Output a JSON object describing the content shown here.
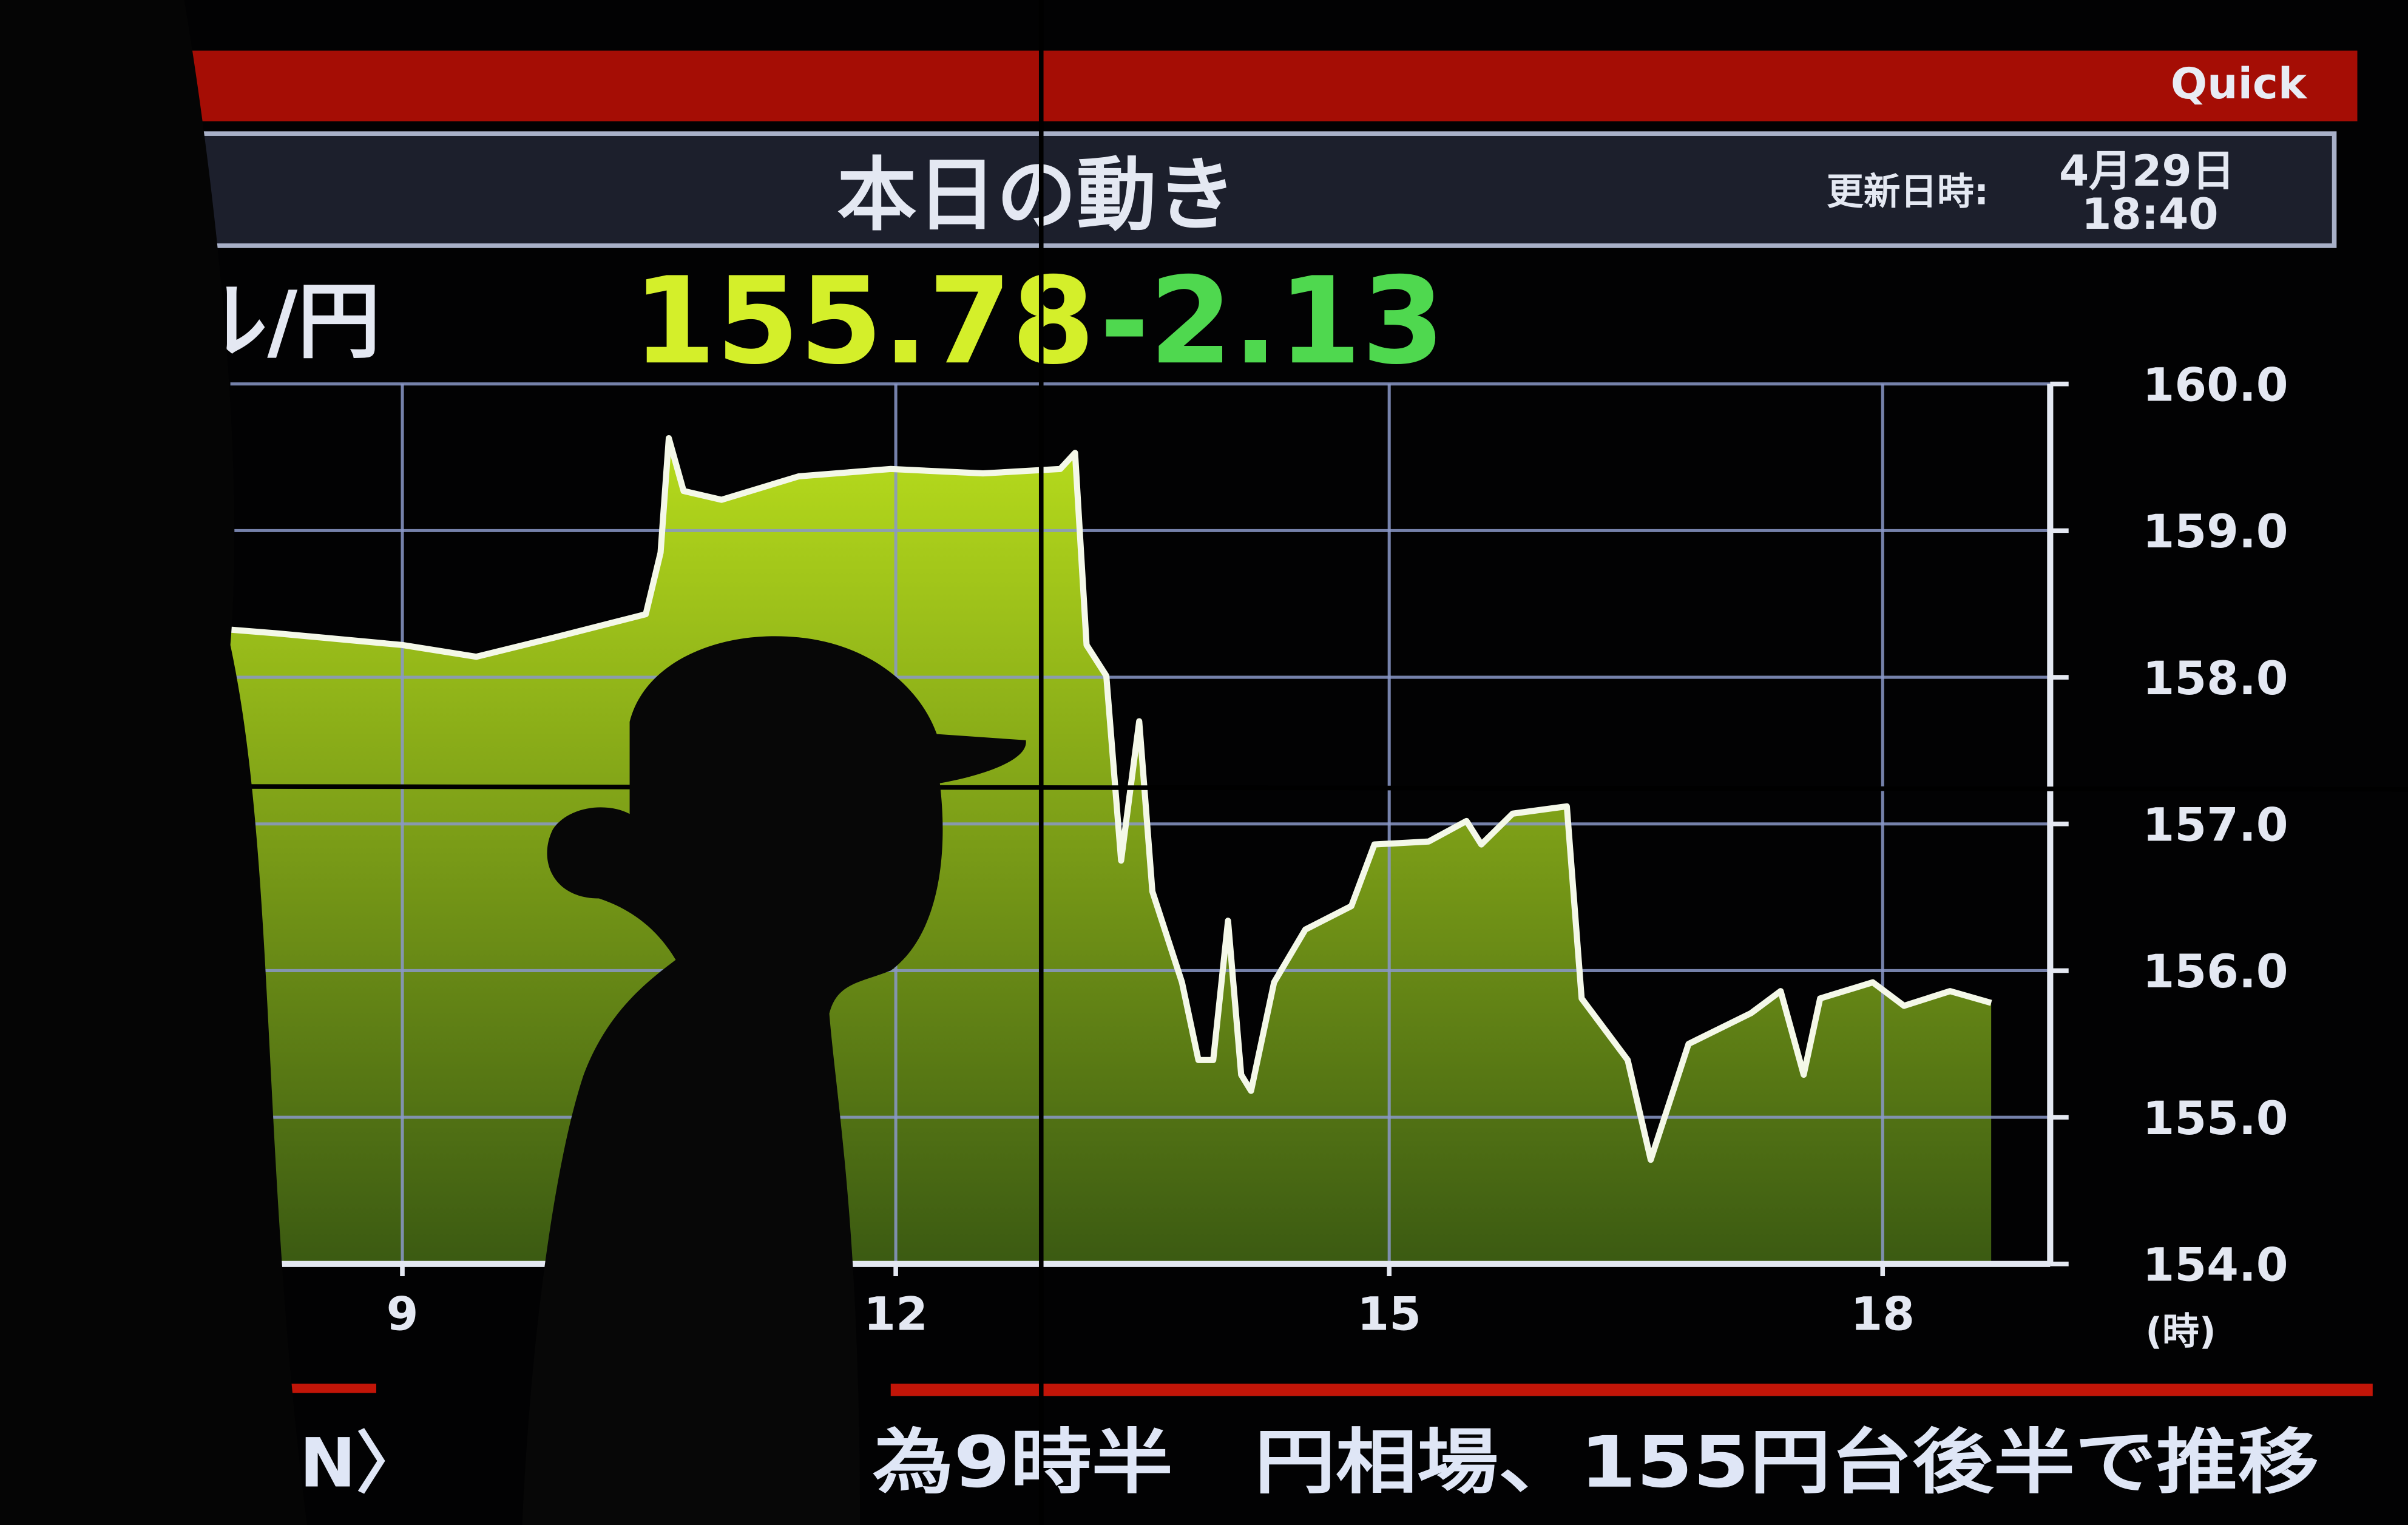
{
  "header": {
    "brand": "Quick",
    "title": "本日の動き",
    "updated_label": "更新日時:",
    "updated_date": "4月29日",
    "updated_time": "18:40"
  },
  "quote": {
    "pair": "ル/円",
    "price": "155.78",
    "change": "-2.13",
    "price_color": "#d4ef2a",
    "change_color": "#4fd84f"
  },
  "ticker": {
    "left_fragment": "N〉",
    "headline": "為9時半　円相場、155円台後半で推移"
  },
  "colors": {
    "banner_red": "#a50d05",
    "area_top": "#b7dc1c",
    "area_bottom": "#3b5a12",
    "line": "#f4f8e8",
    "grid": "#8a98c8"
  },
  "chart_data": {
    "type": "area",
    "xlabel": "(時)",
    "ylabel": "",
    "xlim": [
      6.97,
      18.66
    ],
    "ylim": [
      154.0,
      160.0
    ],
    "grid": true,
    "x_ticks": [
      9,
      12,
      15,
      18
    ],
    "x_tick_labels": [
      "9",
      "12",
      "15",
      "18"
    ],
    "y_ticks": [
      160,
      159,
      158,
      157,
      156,
      155,
      154
    ],
    "y_tick_labels": [
      "160.0",
      "159.0",
      "158.0",
      "157.0",
      "156.0",
      "155.0",
      "154.0"
    ],
    "x": [
      6.97,
      7.3,
      7.67,
      8.23,
      9.0,
      9.45,
      9.92,
      10.48,
      10.57,
      10.62,
      10.71,
      10.94,
      11.41,
      11.97,
      12.53,
      13.0,
      13.09,
      13.16,
      13.28,
      13.37,
      13.48,
      13.56,
      13.74,
      13.84,
      13.93,
      14.02,
      14.1,
      14.16,
      14.3,
      14.49,
      14.77,
      14.91,
      15.24,
      15.47,
      15.56,
      15.75,
      16.08,
      16.17,
      16.45,
      16.59,
      16.82,
      17.2,
      17.38,
      17.52,
      17.62,
      17.94,
      18.13,
      18.41,
      18.66
    ],
    "y": [
      157.96,
      158.32,
      158.35,
      158.3,
      158.22,
      158.14,
      158.27,
      158.43,
      158.85,
      159.63,
      159.27,
      159.21,
      159.37,
      159.42,
      159.39,
      159.42,
      159.53,
      158.22,
      158.01,
      156.75,
      157.7,
      156.54,
      155.92,
      155.39,
      155.39,
      156.34,
      155.29,
      155.18,
      155.92,
      156.28,
      156.44,
      156.86,
      156.88,
      157.02,
      156.86,
      157.07,
      157.12,
      155.81,
      155.39,
      154.71,
      155.5,
      155.71,
      155.86,
      155.29,
      155.81,
      155.92,
      155.76,
      155.86,
      155.78
    ]
  }
}
